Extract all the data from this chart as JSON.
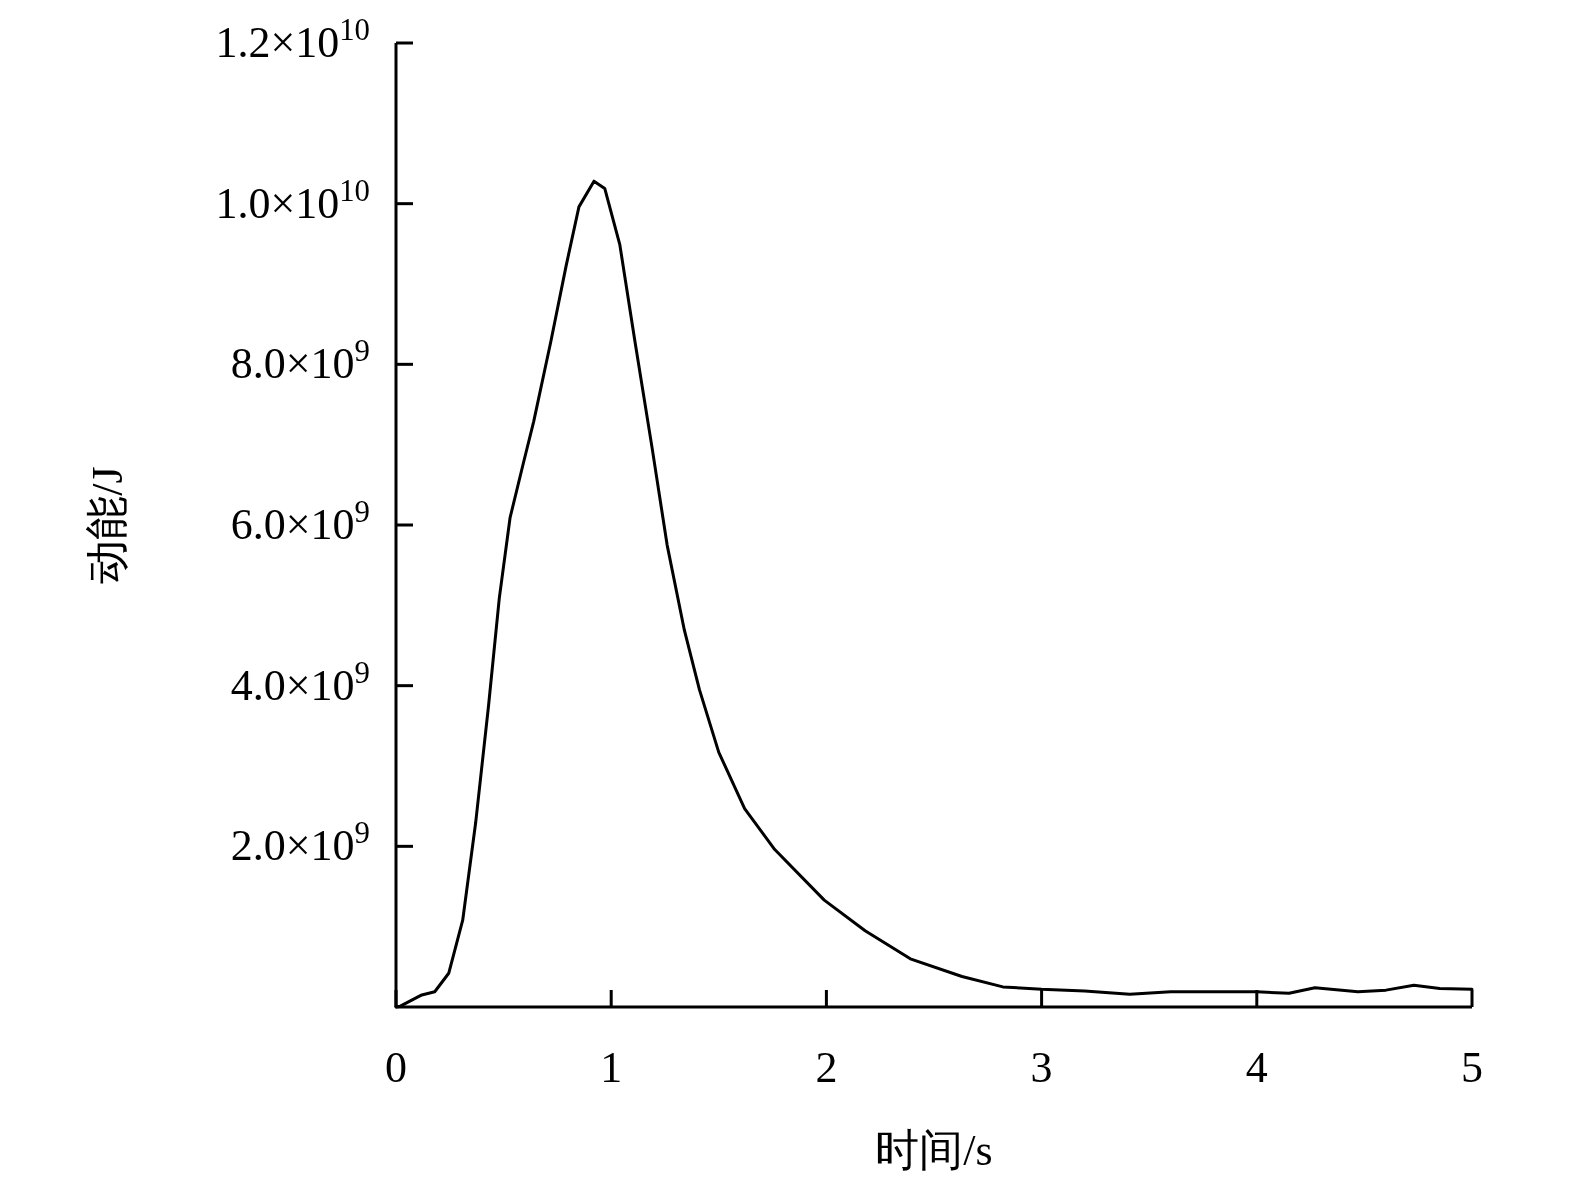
{
  "chart_data": {
    "type": "line",
    "xlabel": "时间/s",
    "ylabel": "动能/J",
    "xlim": [
      0,
      5
    ],
    "xticks": [
      0,
      1,
      2,
      3,
      4,
      5
    ],
    "ylim": [
      0,
      12000000000
    ],
    "yticks": [
      {
        "value": 2000000000,
        "label": "2.0×10$^{9}$"
      },
      {
        "value": 4000000000,
        "label": "4.0×10$^{9}$"
      },
      {
        "value": 6000000000,
        "label": "6.0×10$^{9}$"
      },
      {
        "value": 8000000000,
        "label": "8.0×10$^{9}$"
      },
      {
        "value": 10000000000,
        "label": "1.0×10$^{10}$"
      },
      {
        "value": 12000000000,
        "label": "1.2×10$^{10}$"
      }
    ],
    "grid": false,
    "marker": "none",
    "line_style": "solid",
    "series": [
      {
        "color": "#000000",
        "x": [
          0,
          0.02,
          0.12,
          0.18,
          0.245,
          0.31,
          0.37,
          0.43,
          0.48,
          0.53,
          0.59,
          0.64,
          0.72,
          0.79,
          0.85,
          0.92,
          0.97,
          1.04,
          1.11,
          1.19,
          1.26,
          1.34,
          1.41,
          1.5,
          1.62,
          1.76,
          1.99,
          2.18,
          2.39,
          2.63,
          2.82,
          3.0,
          3.2,
          3.41,
          3.6,
          3.76,
          4.0,
          4.15,
          4.27,
          4.47,
          4.6,
          4.73,
          4.85,
          5.0
        ],
        "values": [
          0,
          10000000,
          150000000,
          190000000,
          420000000,
          1080000000,
          2290000000,
          3750000000,
          5090000000,
          6090000000,
          6750000000,
          7290000000,
          8290000000,
          9220000000,
          9960000000,
          10280000000,
          10190000000,
          9490000000,
          8290000000,
          6960000000,
          5750000000,
          4690000000,
          3950000000,
          3170000000,
          2470000000,
          1960000000,
          1330000000,
          950000000,
          600000000,
          380000000,
          250000000,
          220000000,
          200000000,
          160000000,
          190000000,
          190000000,
          190000000,
          170000000,
          240000000,
          190000000,
          210000000,
          270000000,
          230000000,
          220000000
        ]
      }
    ]
  }
}
